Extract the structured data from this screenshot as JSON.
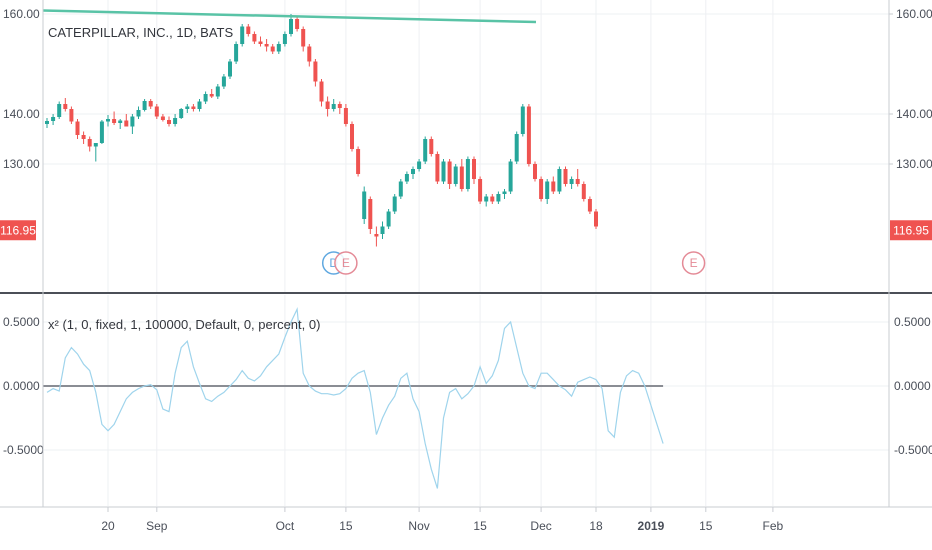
{
  "chart_data": [
    {
      "type": "candlestick",
      "title": "CATERPILLAR, INC., 1D, BATS",
      "ylim": [
        110,
        162
      ],
      "yticks": [
        "160.00",
        "140.00",
        "130.00"
      ],
      "ytick_values": [
        160,
        140,
        130
      ],
      "last_price_label": "116.95",
      "last_price": 116.95,
      "colors": {
        "up": "#26a69a",
        "down": "#ef5350",
        "trendline": "#59c3a6",
        "last_price": "#ef5350"
      },
      "trendline": {
        "from": {
          "bar": 0,
          "price": 160.7
        },
        "to": {
          "bar": 80,
          "price": 158.4
        }
      },
      "earnings_markers": [
        {
          "label": "D",
          "bar": 47,
          "color": "#5fa8e0"
        },
        {
          "label": "E",
          "bar": 49,
          "color": "#e48a96"
        },
        {
          "label": "E",
          "bar": 106,
          "color": "#e48a96"
        }
      ],
      "bars": [
        [
          138.0,
          139.2,
          137.2,
          138.6
        ],
        [
          138.6,
          140.0,
          137.8,
          139.4
        ],
        [
          139.4,
          142.5,
          139.0,
          142.0
        ],
        [
          142.0,
          143.2,
          140.5,
          141.0
        ],
        [
          141.0,
          141.5,
          138.0,
          138.5
        ],
        [
          138.5,
          139.0,
          135.0,
          135.8
        ],
        [
          135.8,
          136.5,
          134.0,
          135.0
        ],
        [
          135.0,
          135.5,
          132.5,
          133.5
        ],
        [
          133.5,
          134.0,
          130.5,
          134.2
        ],
        [
          134.2,
          138.8,
          134.0,
          138.5
        ],
        [
          138.5,
          139.8,
          137.5,
          139.0
        ],
        [
          139.0,
          140.5,
          137.8,
          138.2
        ],
        [
          138.2,
          139.0,
          137.0,
          138.7
        ],
        [
          138.7,
          140.0,
          137.5,
          137.5
        ],
        [
          137.5,
          140.0,
          136.0,
          139.5
        ],
        [
          139.5,
          141.5,
          139.0,
          140.8
        ],
        [
          140.8,
          143.0,
          140.5,
          142.6
        ],
        [
          142.6,
          143.0,
          141.0,
          141.5
        ],
        [
          141.5,
          142.0,
          139.0,
          139.5
        ],
        [
          139.5,
          140.0,
          138.5,
          138.8
        ],
        [
          138.8,
          139.5,
          137.5,
          138.0
        ],
        [
          138.0,
          140.0,
          137.5,
          139.2
        ],
        [
          139.2,
          141.2,
          139.0,
          141.0
        ],
        [
          141.0,
          142.0,
          140.2,
          141.5
        ],
        [
          141.5,
          142.0,
          140.5,
          141.0
        ],
        [
          141.0,
          143.0,
          140.5,
          142.5
        ],
        [
          142.5,
          144.5,
          142.0,
          144.0
        ],
        [
          144.0,
          145.0,
          143.2,
          143.5
        ],
        [
          143.5,
          146.0,
          143.0,
          145.5
        ],
        [
          145.5,
          148.0,
          145.0,
          147.5
        ],
        [
          147.5,
          151.0,
          147.0,
          150.5
        ],
        [
          150.5,
          154.5,
          150.0,
          154.0
        ],
        [
          154.0,
          158.0,
          153.5,
          157.5
        ],
        [
          157.5,
          158.0,
          155.5,
          156.0
        ],
        [
          156.0,
          156.5,
          154.0,
          154.5
        ],
        [
          154.5,
          155.5,
          153.5,
          154.0
        ],
        [
          154.0,
          155.0,
          152.5,
          153.5
        ],
        [
          153.5,
          154.0,
          152.0,
          152.5
        ],
        [
          152.5,
          154.5,
          152.0,
          154.0
        ],
        [
          154.0,
          156.5,
          153.5,
          156.0
        ],
        [
          156.0,
          160.0,
          155.5,
          159.0
        ],
        [
          159.0,
          159.5,
          156.5,
          157.0
        ],
        [
          157.0,
          157.5,
          152.5,
          153.5
        ],
        [
          153.5,
          154.0,
          149.5,
          150.5
        ],
        [
          150.5,
          151.0,
          145.5,
          146.5
        ],
        [
          146.5,
          147.0,
          141.5,
          142.5
        ],
        [
          142.5,
          143.5,
          139.5,
          141.0
        ],
        [
          141.0,
          143.0,
          140.5,
          142.0
        ],
        [
          142.0,
          142.5,
          140.0,
          141.2
        ],
        [
          141.2,
          142.0,
          137.5,
          138.0
        ],
        [
          138.0,
          138.5,
          132.5,
          133.0
        ],
        [
          133.0,
          133.5,
          127.5,
          128.0
        ],
        [
          119.0,
          125.5,
          118.0,
          124.5
        ],
        [
          123.0,
          123.5,
          116.0,
          117.0
        ],
        [
          116.0,
          117.5,
          113.5,
          115.5
        ],
        [
          116.0,
          118.5,
          115.0,
          117.5
        ],
        [
          117.5,
          121.0,
          117.0,
          120.5
        ],
        [
          120.5,
          124.0,
          120.0,
          123.5
        ],
        [
          123.5,
          127.0,
          123.0,
          126.5
        ],
        [
          126.5,
          128.5,
          126.0,
          128.0
        ],
        [
          128.0,
          129.5,
          127.0,
          129.0
        ],
        [
          129.0,
          131.0,
          128.5,
          130.5
        ],
        [
          130.5,
          135.5,
          130.0,
          135.0
        ],
        [
          135.0,
          135.5,
          131.5,
          132.0
        ],
        [
          132.0,
          132.5,
          126.0,
          126.5
        ],
        [
          126.5,
          131.0,
          126.0,
          130.5
        ],
        [
          130.5,
          131.0,
          125.0,
          126.0
        ],
        [
          126.0,
          130.0,
          125.5,
          129.5
        ],
        [
          129.5,
          131.0,
          124.5,
          125.0
        ],
        [
          125.0,
          131.5,
          124.5,
          131.0
        ],
        [
          131.0,
          131.5,
          126.0,
          127.0
        ],
        [
          127.0,
          127.5,
          122.0,
          122.5
        ],
        [
          122.5,
          124.0,
          121.5,
          123.5
        ],
        [
          123.5,
          124.0,
          122.0,
          122.5
        ],
        [
          122.5,
          124.5,
          122.0,
          124.0
        ],
        [
          124.0,
          125.0,
          123.0,
          124.5
        ],
        [
          124.5,
          131.0,
          124.0,
          130.5
        ],
        [
          130.5,
          136.5,
          130.0,
          136.0
        ],
        [
          136.0,
          142.0,
          135.5,
          141.5
        ],
        [
          141.5,
          142.0,
          129.5,
          130.0
        ],
        [
          130.0,
          130.5,
          126.5,
          127.0
        ],
        [
          127.0,
          127.5,
          122.5,
          123.0
        ],
        [
          123.0,
          127.0,
          122.0,
          126.5
        ],
        [
          126.5,
          127.5,
          124.0,
          124.5
        ],
        [
          124.5,
          129.5,
          124.0,
          129.0
        ],
        [
          129.0,
          129.5,
          125.5,
          126.0
        ],
        [
          126.0,
          127.5,
          125.0,
          127.0
        ],
        [
          127.0,
          129.0,
          125.5,
          126.0
        ],
        [
          126.0,
          126.5,
          122.5,
          123.0
        ],
        [
          123.0,
          123.5,
          120.0,
          120.5
        ],
        [
          120.5,
          121.0,
          117.0,
          117.5
        ]
      ]
    },
    {
      "type": "line",
      "title": "x² (1, 0, fixed, 1, 100000, Default, 0, percent, 0)",
      "ylim": [
        -0.82,
        0.68
      ],
      "yticks": [
        "0.5000",
        "0.0000",
        "-0.5000"
      ],
      "ytick_values": [
        0.5,
        0.0,
        -0.5
      ],
      "zero_line": 0.0,
      "colors": {
        "series": "#9fd4ec",
        "zero_line": "#8a8d94"
      },
      "values": [
        -0.05,
        -0.02,
        -0.04,
        0.22,
        0.3,
        0.25,
        0.17,
        0.12,
        -0.05,
        -0.3,
        -0.35,
        -0.3,
        -0.2,
        -0.1,
        -0.05,
        -0.02,
        0.0,
        0.01,
        -0.03,
        -0.18,
        -0.2,
        0.1,
        0.3,
        0.35,
        0.15,
        0.02,
        -0.1,
        -0.12,
        -0.08,
        -0.05,
        0.0,
        0.05,
        0.12,
        0.06,
        0.04,
        0.08,
        0.15,
        0.2,
        0.25,
        0.38,
        0.5,
        0.6,
        0.1,
        0.0,
        -0.04,
        -0.06,
        -0.06,
        -0.07,
        -0.06,
        -0.02,
        0.06,
        0.1,
        0.12,
        -0.05,
        -0.38,
        -0.25,
        -0.15,
        -0.08,
        0.06,
        0.1,
        -0.1,
        -0.2,
        -0.45,
        -0.65,
        -0.8,
        -0.25,
        -0.05,
        -0.02,
        -0.1,
        -0.06,
        0.0,
        0.15,
        0.02,
        0.08,
        0.2,
        0.45,
        0.5,
        0.3,
        0.1,
        0.0,
        -0.02,
        0.1,
        0.1,
        0.05,
        0.0,
        -0.03,
        -0.08,
        0.03,
        0.05,
        0.07,
        0.05,
        -0.02,
        -0.35,
        -0.4,
        -0.05,
        0.08,
        0.12,
        0.1,
        0.0,
        -0.15,
        -0.3,
        -0.45
      ]
    }
  ],
  "xaxis": {
    "ticks": [
      {
        "label": "20",
        "bar": 10
      },
      {
        "label": "Sep",
        "bar": 18
      },
      {
        "label": "Oct",
        "bar": 39
      },
      {
        "label": "15",
        "bar": 49
      },
      {
        "label": "Nov",
        "bar": 61
      },
      {
        "label": "15",
        "bar": 71
      },
      {
        "label": "Dec",
        "bar": 81
      },
      {
        "label": "18",
        "bar": 90
      },
      {
        "label": "2019",
        "bar": 99
      },
      {
        "label": "15",
        "bar": 108
      },
      {
        "label": "Feb",
        "bar": 119
      }
    ],
    "bold_labels": [
      "2019"
    ]
  },
  "colors": {
    "grid": "#eef0f3",
    "divider": "#4b4f57",
    "axis_text": "#4a4f59"
  }
}
